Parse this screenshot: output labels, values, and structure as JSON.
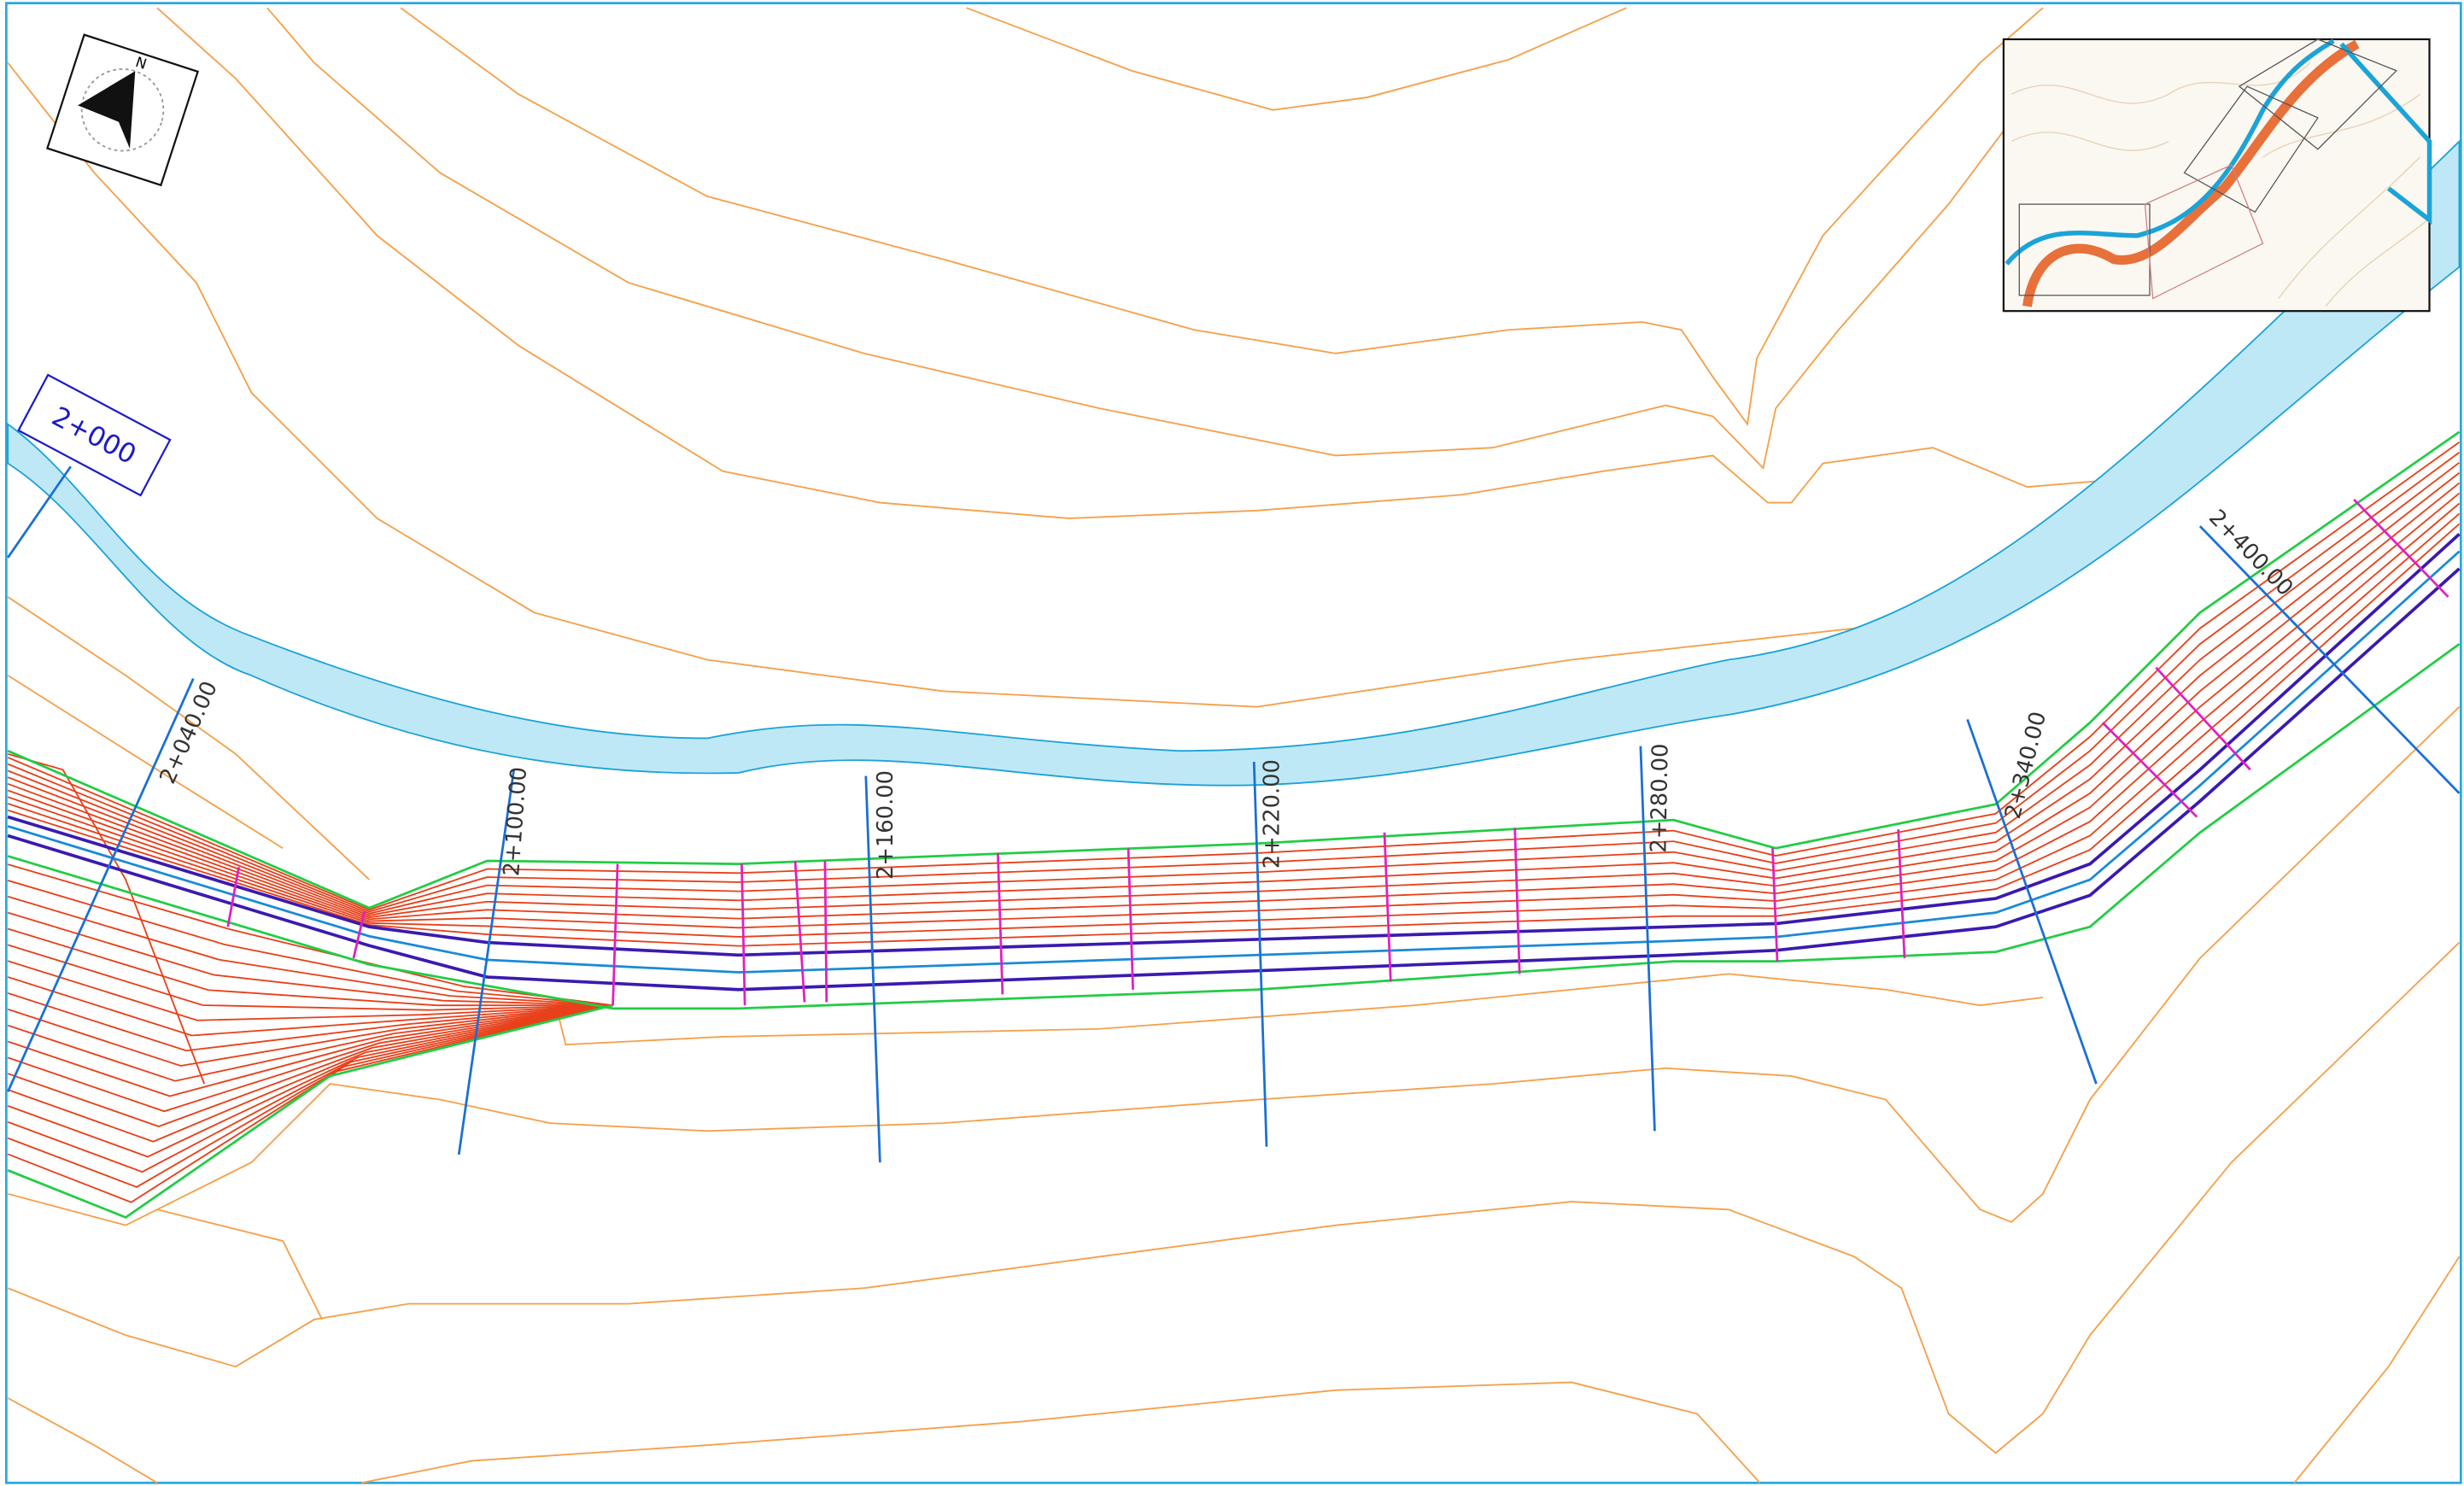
{
  "north_label": "N",
  "start_station": "2+000",
  "stations": [
    "2+040.00",
    "2+100.00",
    "2+160.00",
    "2+220.00",
    "2+280.00",
    "2+340.00",
    "2+400.00"
  ]
}
